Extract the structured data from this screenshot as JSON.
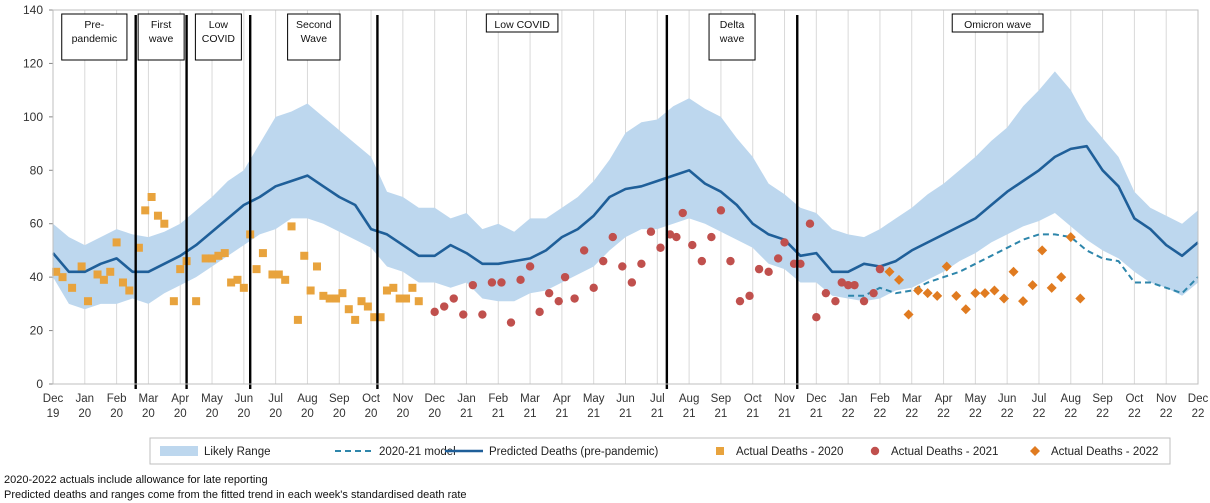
{
  "chart_data": {
    "type": "line",
    "y_axis": {
      "min": 0,
      "max": 140,
      "ticks": [
        "0",
        "20",
        "40",
        "60",
        "80",
        "100",
        "120",
        "140"
      ]
    },
    "x_tick_labels": [
      [
        "Dec",
        "19"
      ],
      [
        "Jan",
        "20"
      ],
      [
        "Feb",
        "20"
      ],
      [
        "Mar",
        "20"
      ],
      [
        "Apr",
        "20"
      ],
      [
        "May",
        "20"
      ],
      [
        "Jun",
        "20"
      ],
      [
        "Jul",
        "20"
      ],
      [
        "Aug",
        "20"
      ],
      [
        "Sep",
        "20"
      ],
      [
        "Oct",
        "20"
      ],
      [
        "Nov",
        "20"
      ],
      [
        "Dec",
        "20"
      ],
      [
        "Jan",
        "21"
      ],
      [
        "Feb",
        "21"
      ],
      [
        "Mar",
        "21"
      ],
      [
        "Apr",
        "21"
      ],
      [
        "May",
        "21"
      ],
      [
        "Jun",
        "21"
      ],
      [
        "Jul",
        "21"
      ],
      [
        "Aug",
        "21"
      ],
      [
        "Sep",
        "21"
      ],
      [
        "Oct",
        "21"
      ],
      [
        "Nov",
        "21"
      ],
      [
        "Dec",
        "21"
      ],
      [
        "Jan",
        "22"
      ],
      [
        "Feb",
        "22"
      ],
      [
        "Mar",
        "22"
      ],
      [
        "Apr",
        "22"
      ],
      [
        "May",
        "22"
      ],
      [
        "Jun",
        "22"
      ],
      [
        "Jul",
        "22"
      ],
      [
        "Aug",
        "22"
      ],
      [
        "Sep",
        "22"
      ],
      [
        "Oct",
        "22"
      ],
      [
        "Nov",
        "22"
      ],
      [
        "Dec",
        "22"
      ]
    ],
    "grid": "vertical",
    "phases": [
      {
        "label": [
          "Pre-",
          "pandemic"
        ],
        "start": 0.0,
        "end": 2.6
      },
      {
        "label": [
          "First",
          "wave"
        ],
        "start": 2.6,
        "end": 4.2
      },
      {
        "label": [
          "Low",
          "COVID"
        ],
        "start": 4.2,
        "end": 6.2
      },
      {
        "label": [
          "Second",
          "Wave"
        ],
        "start": 6.2,
        "end": 10.2
      },
      {
        "label": [
          "Low COVID"
        ],
        "start": 10.2,
        "end": 19.3
      },
      {
        "label": [
          "Delta",
          "wave"
        ],
        "start": 19.3,
        "end": 23.4
      },
      {
        "label": [
          "Omicron wave"
        ],
        "start": 23.4,
        "end": 36.0
      }
    ],
    "phase_dividers": [
      2.6,
      4.2,
      6.2,
      10.2,
      19.3,
      23.4
    ],
    "series": [
      {
        "name": "Likely Range",
        "kind": "band",
        "color": "#bdd7ee",
        "x": [
          0,
          0.5,
          1,
          1.5,
          2,
          2.5,
          3,
          3.5,
          4,
          4.5,
          5,
          5.5,
          6,
          6.5,
          7,
          7.5,
          8,
          8.5,
          9,
          9.5,
          10,
          10.5,
          11,
          11.5,
          12,
          12.5,
          13,
          13.5,
          14,
          14.5,
          15,
          15.5,
          16,
          16.5,
          17,
          17.5,
          18,
          18.5,
          19,
          19.5,
          20,
          20.5,
          21,
          21.5,
          22,
          22.5,
          23,
          23.5,
          24,
          24.5,
          25,
          25.5,
          26,
          26.5,
          27,
          27.5,
          28,
          28.5,
          29,
          29.5,
          30,
          30.5,
          31,
          31.5,
          32,
          32.5,
          33,
          33.5,
          34,
          34.5,
          35,
          35.5,
          36
        ],
        "upper": [
          60,
          55,
          52,
          55,
          58,
          56,
          55,
          57,
          60,
          65,
          70,
          76,
          80,
          90,
          100,
          102,
          105,
          100,
          95,
          90,
          85,
          72,
          70,
          66,
          66,
          62,
          64,
          58,
          60,
          57,
          62,
          62,
          66,
          70,
          76,
          84,
          94,
          98,
          99,
          104,
          107,
          103,
          100,
          92,
          85,
          75,
          71,
          66,
          64,
          58,
          56,
          55,
          58,
          62,
          66,
          71,
          75,
          80,
          85,
          91,
          96,
          104,
          110,
          117,
          110,
          99,
          92,
          85,
          72,
          66,
          63,
          60,
          65
        ],
        "lower": [
          40,
          30,
          28,
          30,
          30,
          32,
          30,
          34,
          37,
          40,
          44,
          48,
          52,
          56,
          58,
          62,
          62,
          60,
          57,
          54,
          51,
          44,
          42,
          38,
          38,
          36,
          38,
          32,
          31,
          31,
          34,
          35,
          38,
          41,
          44,
          50,
          55,
          58,
          58,
          60,
          62,
          60,
          57,
          54,
          51,
          45,
          43,
          38,
          38,
          33,
          32,
          31,
          32,
          35,
          36,
          39,
          42,
          46,
          49,
          53,
          56,
          59,
          61,
          64,
          59,
          54,
          50,
          47,
          42,
          38,
          36,
          33,
          38
        ]
      },
      {
        "name": "2020-21 model",
        "kind": "dashed-line",
        "color": "#2e86ab",
        "x": [
          25,
          25.5,
          26,
          26.5,
          27,
          27.5,
          28,
          28.5,
          29,
          29.5,
          30,
          30.5,
          31,
          31.5,
          32,
          32.5,
          33,
          33.5,
          34,
          34.5,
          35,
          35.5,
          36
        ],
        "y": [
          33,
          33,
          36,
          34,
          35,
          38,
          40,
          42,
          45,
          48,
          51,
          54,
          56,
          56,
          55,
          50,
          47,
          46,
          38,
          38,
          36,
          34,
          40
        ]
      },
      {
        "name": "Predicted Deaths (pre-pandemic)",
        "kind": "line",
        "color": "#1f5f99",
        "x": [
          0,
          0.5,
          1,
          1.5,
          2,
          2.5,
          3,
          3.5,
          4,
          4.5,
          5,
          5.5,
          6,
          6.5,
          7,
          7.5,
          8,
          8.5,
          9,
          9.5,
          10,
          10.5,
          11,
          11.5,
          12,
          12.5,
          13,
          13.5,
          14,
          14.5,
          15,
          15.5,
          16,
          16.5,
          17,
          17.5,
          18,
          18.5,
          19,
          19.5,
          20,
          20.5,
          21,
          21.5,
          22,
          22.5,
          23,
          23.5,
          24,
          24.5,
          25,
          25.5,
          26,
          26.5,
          27,
          27.5,
          28,
          28.5,
          29,
          29.5,
          30,
          30.5,
          31,
          31.5,
          32,
          32.5,
          33,
          33.5,
          34,
          34.5,
          35,
          35.5,
          36
        ],
        "y": [
          49,
          42,
          42,
          45,
          47,
          42,
          42,
          45,
          48,
          52,
          57,
          62,
          67,
          70,
          74,
          76,
          78,
          74,
          70,
          67,
          58,
          56,
          52,
          48,
          48,
          52,
          49,
          45,
          45,
          46,
          47,
          50,
          55,
          58,
          63,
          70,
          73,
          74,
          76,
          78,
          80,
          75,
          72,
          67,
          60,
          56,
          54,
          48,
          49,
          42,
          42,
          45,
          44,
          46,
          50,
          53,
          56,
          59,
          62,
          67,
          72,
          76,
          80,
          85,
          88,
          89,
          80,
          74,
          62,
          58,
          52,
          48,
          53
        ]
      },
      {
        "name": "Actual Deaths - 2020",
        "kind": "square",
        "color": "#e8a33d",
        "points": [
          [
            0.1,
            42
          ],
          [
            0.3,
            40
          ],
          [
            0.6,
            36
          ],
          [
            0.9,
            44
          ],
          [
            1.1,
            31
          ],
          [
            1.4,
            41
          ],
          [
            1.6,
            39
          ],
          [
            1.8,
            42
          ],
          [
            2.0,
            53
          ],
          [
            2.2,
            38
          ],
          [
            2.4,
            35
          ],
          [
            2.7,
            51
          ],
          [
            2.9,
            65
          ],
          [
            3.1,
            70
          ],
          [
            3.3,
            63
          ],
          [
            3.5,
            60
          ],
          [
            3.8,
            31
          ],
          [
            4.0,
            43
          ],
          [
            4.2,
            46
          ],
          [
            4.5,
            31
          ],
          [
            4.8,
            47
          ],
          [
            5.0,
            47
          ],
          [
            5.2,
            48
          ],
          [
            5.4,
            49
          ],
          [
            5.6,
            38
          ],
          [
            5.8,
            39
          ],
          [
            6.0,
            36
          ],
          [
            6.2,
            56
          ],
          [
            6.4,
            43
          ],
          [
            6.6,
            49
          ],
          [
            6.9,
            41
          ],
          [
            7.1,
            41
          ],
          [
            7.3,
            39
          ],
          [
            7.5,
            59
          ],
          [
            7.7,
            24
          ],
          [
            7.9,
            48
          ],
          [
            8.1,
            35
          ],
          [
            8.3,
            44
          ],
          [
            8.5,
            33
          ],
          [
            8.7,
            32
          ],
          [
            8.9,
            32
          ],
          [
            9.1,
            34
          ],
          [
            9.3,
            28
          ],
          [
            9.5,
            24
          ],
          [
            9.7,
            31
          ],
          [
            9.9,
            29
          ],
          [
            10.1,
            25
          ],
          [
            10.3,
            25
          ],
          [
            10.5,
            35
          ],
          [
            10.7,
            36
          ],
          [
            10.9,
            32
          ],
          [
            11.1,
            32
          ],
          [
            11.3,
            36
          ],
          [
            11.5,
            31
          ]
        ]
      },
      {
        "name": "Actual Deaths - 2021",
        "kind": "circle",
        "color": "#c0504d",
        "points": [
          [
            12.0,
            27
          ],
          [
            12.3,
            29
          ],
          [
            12.6,
            32
          ],
          [
            12.9,
            26
          ],
          [
            13.2,
            37
          ],
          [
            13.5,
            26
          ],
          [
            13.8,
            38
          ],
          [
            14.1,
            38
          ],
          [
            14.4,
            23
          ],
          [
            14.7,
            39
          ],
          [
            15.0,
            44
          ],
          [
            15.3,
            27
          ],
          [
            15.6,
            34
          ],
          [
            15.9,
            31
          ],
          [
            16.1,
            40
          ],
          [
            16.4,
            32
          ],
          [
            16.7,
            50
          ],
          [
            17.0,
            36
          ],
          [
            17.3,
            46
          ],
          [
            17.6,
            55
          ],
          [
            17.9,
            44
          ],
          [
            18.2,
            38
          ],
          [
            18.5,
            45
          ],
          [
            18.8,
            57
          ],
          [
            19.1,
            51
          ],
          [
            19.4,
            56
          ],
          [
            19.6,
            55
          ],
          [
            19.8,
            64
          ],
          [
            20.1,
            52
          ],
          [
            20.4,
            46
          ],
          [
            20.7,
            55
          ],
          [
            21.0,
            65
          ],
          [
            21.3,
            46
          ],
          [
            21.6,
            31
          ],
          [
            21.9,
            33
          ],
          [
            22.2,
            43
          ],
          [
            22.5,
            42
          ],
          [
            22.8,
            47
          ],
          [
            23.0,
            53
          ],
          [
            23.3,
            45
          ],
          [
            23.5,
            45
          ],
          [
            23.8,
            60
          ],
          [
            24.0,
            25
          ],
          [
            24.3,
            34
          ],
          [
            24.6,
            31
          ],
          [
            24.8,
            38
          ],
          [
            25.0,
            37
          ],
          [
            25.2,
            37
          ],
          [
            25.5,
            31
          ],
          [
            25.8,
            34
          ],
          [
            26.0,
            43
          ]
        ]
      },
      {
        "name": "Actual Deaths - 2022",
        "kind": "diamond",
        "color": "#e07b20",
        "points": [
          [
            26.3,
            42
          ],
          [
            26.6,
            39
          ],
          [
            26.9,
            26
          ],
          [
            27.2,
            35
          ],
          [
            27.5,
            34
          ],
          [
            27.8,
            33
          ],
          [
            28.1,
            44
          ],
          [
            28.4,
            33
          ],
          [
            28.7,
            28
          ],
          [
            29.0,
            34
          ],
          [
            29.3,
            34
          ],
          [
            29.6,
            35
          ],
          [
            29.9,
            32
          ],
          [
            30.2,
            42
          ],
          [
            30.5,
            31
          ],
          [
            30.8,
            37
          ],
          [
            31.1,
            50
          ],
          [
            31.4,
            36
          ],
          [
            31.7,
            40
          ],
          [
            32.0,
            55
          ],
          [
            32.3,
            32
          ]
        ]
      }
    ]
  },
  "legend": [
    {
      "label": "Likely Range",
      "kind": "band",
      "color": "#bdd7ee"
    },
    {
      "label": "2020-21 model",
      "kind": "dashed-line",
      "color": "#2e86ab"
    },
    {
      "label": "Predicted Deaths (pre-pandemic)",
      "kind": "line",
      "color": "#1f5f99"
    },
    {
      "label": "Actual Deaths - 2020",
      "kind": "square",
      "color": "#e8a33d"
    },
    {
      "label": "Actual Deaths - 2021",
      "kind": "circle",
      "color": "#c0504d"
    },
    {
      "label": "Actual Deaths - 2022",
      "kind": "diamond",
      "color": "#e07b20"
    }
  ],
  "notes": [
    "2020-2022 actuals include allowance for late reporting",
    "Predicted deaths and ranges come from the fitted trend in each week's standardised death rate"
  ]
}
